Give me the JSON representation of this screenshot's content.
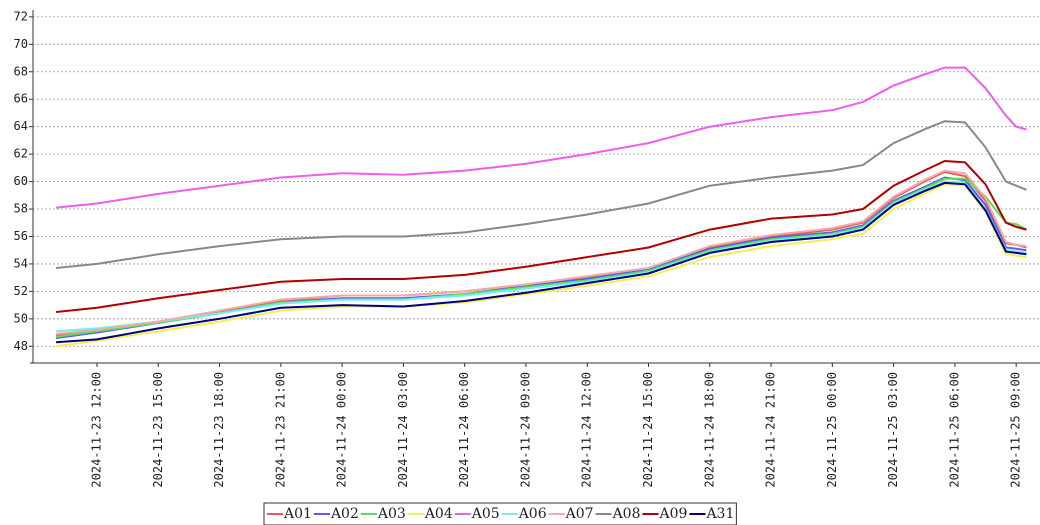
{
  "chart_data": {
    "type": "line",
    "x": [
      "2024-11-23 10:00",
      "2024-11-23 12:00",
      "2024-11-23 15:00",
      "2024-11-23 18:00",
      "2024-11-23 21:00",
      "2024-11-24 00:00",
      "2024-11-24 03:00",
      "2024-11-24 06:00",
      "2024-11-24 09:00",
      "2024-11-24 12:00",
      "2024-11-24 15:00",
      "2024-11-24 18:00",
      "2024-11-24 21:00",
      "2024-11-25 00:00",
      "2024-11-25 01:30",
      "2024-11-25 03:00",
      "2024-11-25 04:30",
      "2024-11-25 05:30",
      "2024-11-25 06:30",
      "2024-11-25 07:30",
      "2024-11-25 08:30",
      "2024-11-25 09:00",
      "2024-11-25 09:30"
    ],
    "xlim": [
      "2024-11-23 08:52",
      "2024-11-25 10:10"
    ],
    "xticks": [
      "2024-11-23 12:00",
      "2024-11-23 15:00",
      "2024-11-23 18:00",
      "2024-11-23 21:00",
      "2024-11-24 00:00",
      "2024-11-24 03:00",
      "2024-11-24 06:00",
      "2024-11-24 09:00",
      "2024-11-24 12:00",
      "2024-11-24 15:00",
      "2024-11-24 18:00",
      "2024-11-24 21:00",
      "2024-11-25 00:00",
      "2024-11-25 03:00",
      "2024-11-25 06:00",
      "2024-11-25 09:00"
    ],
    "ylim": [
      47,
      72.5
    ],
    "yticks": [
      48,
      50,
      52,
      54,
      56,
      58,
      60,
      62,
      64,
      66,
      68,
      70,
      72
    ],
    "grid": true,
    "series": [
      {
        "name": "A01",
        "color": "#e85a5a",
        "values": [
          48.8,
          49.2,
          49.8,
          50.5,
          51.3,
          51.7,
          51.7,
          52.0,
          52.5,
          53.0,
          53.6,
          55.2,
          56.0,
          56.5,
          57.0,
          58.8,
          60.0,
          60.7,
          60.4,
          58.6,
          55.5,
          55.4,
          55.2
        ]
      },
      {
        "name": "A02",
        "color": "#5b5bf0",
        "values": [
          48.6,
          49.0,
          49.7,
          50.4,
          51.2,
          51.5,
          51.5,
          51.8,
          52.4,
          52.9,
          53.6,
          55.1,
          55.9,
          56.3,
          56.8,
          58.6,
          59.6,
          60.3,
          60.1,
          58.3,
          55.2,
          55.1,
          55.0
        ]
      },
      {
        "name": "A03",
        "color": "#55e055",
        "values": [
          48.7,
          49.1,
          49.7,
          50.4,
          51.2,
          51.4,
          51.4,
          51.8,
          52.3,
          52.8,
          53.5,
          55.0,
          55.8,
          56.2,
          56.7,
          58.5,
          59.5,
          60.2,
          60.2,
          58.9,
          57.0,
          56.9,
          56.5
        ]
      },
      {
        "name": "A04",
        "color": "#f5f050",
        "values": [
          48.0,
          48.4,
          49.1,
          49.8,
          50.6,
          50.9,
          50.9,
          51.2,
          51.8,
          52.4,
          53.1,
          54.5,
          55.3,
          55.8,
          56.2,
          58.0,
          59.1,
          59.8,
          59.7,
          57.8,
          54.7,
          54.6,
          54.5
        ]
      },
      {
        "name": "A05",
        "color": "#f05cf0",
        "values": [
          58.1,
          58.4,
          59.1,
          59.7,
          60.3,
          60.6,
          60.5,
          60.8,
          61.3,
          62.0,
          62.8,
          64.0,
          64.7,
          65.2,
          65.8,
          67.0,
          67.8,
          68.3,
          68.3,
          66.8,
          64.8,
          64.0,
          63.8
        ]
      },
      {
        "name": "A06",
        "color": "#6ef0f0",
        "values": [
          49.1,
          49.3,
          49.8,
          50.4,
          51.1,
          51.4,
          51.4,
          51.7,
          52.2,
          52.7,
          53.4,
          54.9,
          55.7,
          56.1,
          56.6,
          58.4,
          59.4,
          60.0,
          59.9,
          58.0,
          55.0,
          54.9,
          54.8
        ]
      },
      {
        "name": "A07",
        "color": "#f5a8a8",
        "values": [
          48.9,
          49.2,
          49.8,
          50.6,
          51.4,
          51.7,
          51.7,
          52.0,
          52.5,
          53.1,
          53.7,
          55.3,
          56.1,
          56.6,
          57.1,
          58.9,
          60.1,
          60.8,
          60.6,
          58.8,
          55.6,
          55.4,
          55.3
        ]
      },
      {
        "name": "A08",
        "color": "#888888",
        "values": [
          53.7,
          54.0,
          54.7,
          55.3,
          55.8,
          56.0,
          56.0,
          56.3,
          56.9,
          57.6,
          58.4,
          59.7,
          60.3,
          60.8,
          61.2,
          62.8,
          63.8,
          64.4,
          64.3,
          62.5,
          60.0,
          59.7,
          59.4
        ]
      },
      {
        "name": "A09",
        "color": "#b00000",
        "values": [
          50.5,
          50.8,
          51.5,
          52.1,
          52.7,
          52.9,
          52.9,
          53.2,
          53.8,
          54.5,
          55.2,
          56.5,
          57.3,
          57.6,
          58.0,
          59.7,
          60.8,
          61.5,
          61.4,
          59.8,
          57.0,
          56.7,
          56.5
        ]
      },
      {
        "name": "A31",
        "color": "#000080",
        "values": [
          48.3,
          48.5,
          49.3,
          50.0,
          50.8,
          51.0,
          50.9,
          51.3,
          51.9,
          52.6,
          53.3,
          54.8,
          55.6,
          56.0,
          56.5,
          58.3,
          59.3,
          59.9,
          59.8,
          57.9,
          54.9,
          54.8,
          54.7
        ]
      }
    ]
  }
}
